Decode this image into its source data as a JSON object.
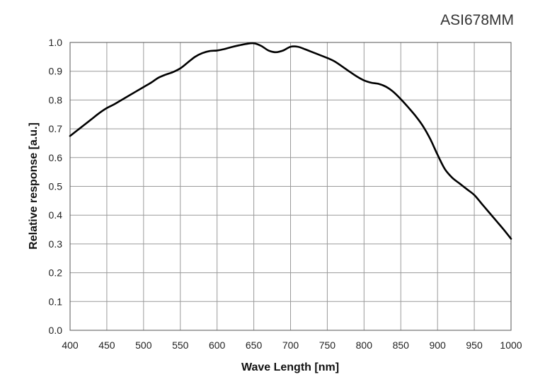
{
  "chart_data": {
    "type": "line",
    "title": "ASI678MM",
    "xlabel": "Wave Length [nm]",
    "ylabel": "Relative response [a.u.]",
    "xlim": [
      400,
      1000
    ],
    "ylim": [
      0.0,
      1.0
    ],
    "x_ticks": [
      "400",
      "450",
      "500",
      "550",
      "600",
      "650",
      "700",
      "750",
      "800",
      "850",
      "900",
      "950",
      "1000"
    ],
    "y_ticks": [
      "0.0",
      "0.1",
      "0.2",
      "0.3",
      "0.4",
      "0.5",
      "0.6",
      "0.7",
      "0.8",
      "0.9",
      "1.0"
    ],
    "grid": true,
    "series": [
      {
        "x": [
          400,
          410,
          420,
          430,
          440,
          450,
          460,
          470,
          480,
          490,
          500,
          510,
          520,
          530,
          540,
          550,
          560,
          570,
          580,
          590,
          600,
          610,
          620,
          630,
          640,
          650,
          660,
          670,
          680,
          690,
          700,
          710,
          720,
          730,
          740,
          750,
          760,
          770,
          780,
          790,
          800,
          810,
          820,
          830,
          840,
          850,
          860,
          870,
          880,
          890,
          900,
          910,
          920,
          930,
          940,
          950,
          960,
          970,
          980,
          990,
          1000
        ],
        "y": [
          0.675,
          0.695,
          0.715,
          0.735,
          0.755,
          0.772,
          0.785,
          0.8,
          0.815,
          0.83,
          0.845,
          0.86,
          0.877,
          0.888,
          0.897,
          0.91,
          0.93,
          0.95,
          0.963,
          0.97,
          0.972,
          0.977,
          0.984,
          0.99,
          0.995,
          0.997,
          0.988,
          0.972,
          0.966,
          0.972,
          0.985,
          0.985,
          0.976,
          0.966,
          0.956,
          0.946,
          0.934,
          0.917,
          0.899,
          0.882,
          0.868,
          0.86,
          0.856,
          0.846,
          0.828,
          0.803,
          0.775,
          0.745,
          0.71,
          0.665,
          0.61,
          0.56,
          0.53,
          0.51,
          0.49,
          0.47,
          0.44,
          0.41,
          0.38,
          0.35,
          0.318
        ]
      }
    ]
  }
}
